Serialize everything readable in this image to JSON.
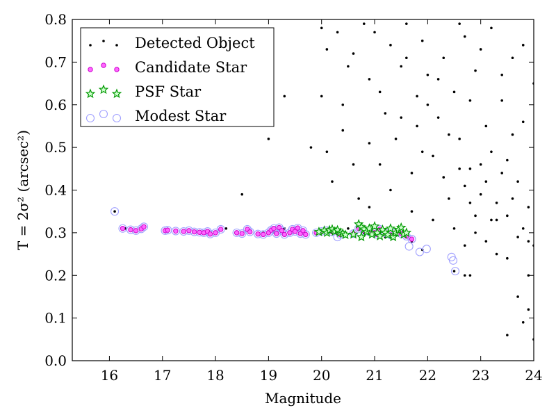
{
  "chart_data": {
    "type": "scatter",
    "xlabel": "Magnitude",
    "ylabel": "T = 2σ² (arcsec²)",
    "xlim": [
      15.3,
      24
    ],
    "ylim": [
      0.0,
      0.8
    ],
    "xticks": [
      16,
      17,
      18,
      19,
      20,
      21,
      22,
      23,
      24
    ],
    "yticks": [
      0.0,
      0.1,
      0.2,
      0.3,
      0.4,
      0.5,
      0.6,
      0.7,
      0.8
    ],
    "xtick_labels": [
      "16",
      "17",
      "18",
      "19",
      "20",
      "21",
      "22",
      "23",
      "24"
    ],
    "ytick_labels": [
      "0.0",
      "0.1",
      "0.2",
      "0.3",
      "0.4",
      "0.5",
      "0.6",
      "0.7",
      "0.8"
    ],
    "grid": false,
    "legend_position": "top-left",
    "legend": [
      {
        "label": "Detected Object",
        "marker": "dot",
        "color": "#000000"
      },
      {
        "label": "Candidate Star",
        "marker": "circle",
        "color": "#ff00ff"
      },
      {
        "label": "PSF Star",
        "marker": "star",
        "color": "#00aa00"
      },
      {
        "label": "Modest Star",
        "marker": "open-circle",
        "color": "#9999ff"
      }
    ],
    "series": [
      {
        "name": "Detected Object",
        "marker": "dot",
        "color": "#000000",
        "points": [
          [
            16.1,
            0.35
          ],
          [
            16.3,
            0.31
          ],
          [
            16.6,
            0.31
          ],
          [
            17.1,
            0.305
          ],
          [
            17.5,
            0.303
          ],
          [
            17.9,
            0.3
          ],
          [
            18.0,
            0.3
          ],
          [
            18.2,
            0.31
          ],
          [
            18.5,
            0.39
          ],
          [
            18.9,
            0.3
          ],
          [
            19.0,
            0.52
          ],
          [
            19.1,
            0.3
          ],
          [
            19.3,
            0.31
          ],
          [
            19.5,
            0.3
          ],
          [
            19.3,
            0.62
          ],
          [
            19.8,
            0.5
          ],
          [
            19.9,
            0.3
          ],
          [
            20.0,
            0.62
          ],
          [
            20.1,
            0.49
          ],
          [
            20.3,
            0.31
          ],
          [
            20.4,
            0.6
          ],
          [
            20.5,
            0.31
          ],
          [
            20.6,
            0.46
          ],
          [
            20.8,
            0.3
          ],
          [
            20.9,
            0.36
          ],
          [
            21.0,
            0.3
          ],
          [
            21.2,
            0.29
          ],
          [
            21.4,
            0.3
          ],
          [
            21.7,
            0.28
          ],
          [
            21.9,
            0.26
          ],
          [
            22.5,
            0.21
          ],
          [
            22.7,
            0.2
          ],
          [
            20.0,
            0.78
          ],
          [
            20.1,
            0.73
          ],
          [
            20.3,
            0.77
          ],
          [
            20.5,
            0.69
          ],
          [
            20.6,
            0.72
          ],
          [
            20.8,
            0.79
          ],
          [
            20.9,
            0.66
          ],
          [
            21.0,
            0.77
          ],
          [
            21.1,
            0.63
          ],
          [
            21.2,
            0.58
          ],
          [
            21.3,
            0.74
          ],
          [
            21.4,
            0.52
          ],
          [
            21.5,
            0.69
          ],
          [
            21.6,
            0.79
          ],
          [
            21.7,
            0.44
          ],
          [
            21.8,
            0.62
          ],
          [
            21.9,
            0.75
          ],
          [
            22.0,
            0.67
          ],
          [
            22.1,
            0.48
          ],
          [
            22.2,
            0.57
          ],
          [
            22.3,
            0.71
          ],
          [
            22.4,
            0.38
          ],
          [
            22.5,
            0.63
          ],
          [
            22.6,
            0.52
          ],
          [
            22.7,
            0.76
          ],
          [
            22.8,
            0.45
          ],
          [
            22.9,
            0.68
          ],
          [
            23.0,
            0.39
          ],
          [
            23.1,
            0.55
          ],
          [
            23.2,
            0.78
          ],
          [
            23.3,
            0.33
          ],
          [
            23.4,
            0.61
          ],
          [
            23.5,
            0.47
          ],
          [
            23.6,
            0.71
          ],
          [
            23.7,
            0.29
          ],
          [
            23.8,
            0.56
          ],
          [
            23.9,
            0.36
          ],
          [
            24.0,
            0.65
          ],
          [
            20.2,
            0.42
          ],
          [
            20.4,
            0.54
          ],
          [
            20.7,
            0.38
          ],
          [
            20.9,
            0.51
          ],
          [
            21.1,
            0.46
          ],
          [
            21.3,
            0.4
          ],
          [
            21.5,
            0.57
          ],
          [
            21.7,
            0.35
          ],
          [
            21.9,
            0.49
          ],
          [
            22.1,
            0.33
          ],
          [
            22.3,
            0.43
          ],
          [
            22.5,
            0.31
          ],
          [
            22.7,
            0.41
          ],
          [
            22.9,
            0.34
          ],
          [
            23.1,
            0.42
          ],
          [
            23.3,
            0.37
          ],
          [
            23.5,
            0.34
          ],
          [
            23.7,
            0.42
          ],
          [
            23.9,
            0.28
          ],
          [
            22.6,
            0.79
          ],
          [
            22.8,
            0.61
          ],
          [
            23.0,
            0.73
          ],
          [
            23.2,
            0.49
          ],
          [
            23.4,
            0.67
          ],
          [
            23.6,
            0.53
          ],
          [
            23.8,
            0.74
          ],
          [
            21.6,
            0.71
          ],
          [
            21.8,
            0.55
          ],
          [
            22.0,
            0.6
          ],
          [
            22.2,
            0.66
          ],
          [
            22.4,
            0.53
          ],
          [
            22.6,
            0.45
          ],
          [
            22.8,
            0.37
          ],
          [
            23.0,
            0.46
          ],
          [
            23.2,
            0.33
          ],
          [
            23.4,
            0.44
          ],
          [
            23.6,
            0.38
          ],
          [
            23.8,
            0.31
          ],
          [
            24.0,
            0.27
          ],
          [
            23.7,
            0.15
          ],
          [
            23.9,
            0.12
          ],
          [
            23.5,
            0.24
          ],
          [
            23.9,
            0.2
          ],
          [
            23.8,
            0.09
          ],
          [
            24.0,
            0.05
          ],
          [
            23.5,
            0.06
          ],
          [
            23.3,
            0.25
          ],
          [
            23.1,
            0.28
          ],
          [
            22.9,
            0.3
          ],
          [
            22.7,
            0.27
          ],
          [
            22.8,
            0.2
          ]
        ]
      },
      {
        "name": "Candidate Star",
        "marker": "circle",
        "color": "#ff00ff",
        "points": [
          [
            16.25,
            0.31
          ],
          [
            16.4,
            0.307
          ],
          [
            16.5,
            0.305
          ],
          [
            16.6,
            0.309
          ],
          [
            16.65,
            0.314
          ],
          [
            17.05,
            0.305
          ],
          [
            17.1,
            0.306
          ],
          [
            17.25,
            0.304
          ],
          [
            17.4,
            0.303
          ],
          [
            17.5,
            0.305
          ],
          [
            17.6,
            0.302
          ],
          [
            17.7,
            0.301
          ],
          [
            17.78,
            0.3
          ],
          [
            17.85,
            0.303
          ],
          [
            17.9,
            0.297
          ],
          [
            18.0,
            0.3
          ],
          [
            18.1,
            0.308
          ],
          [
            18.4,
            0.3
          ],
          [
            18.5,
            0.298
          ],
          [
            18.6,
            0.308
          ],
          [
            18.65,
            0.302
          ],
          [
            18.8,
            0.297
          ],
          [
            18.9,
            0.296
          ],
          [
            19.0,
            0.3
          ],
          [
            19.05,
            0.306
          ],
          [
            19.1,
            0.31
          ],
          [
            19.15,
            0.298
          ],
          [
            19.2,
            0.312
          ],
          [
            19.25,
            0.305
          ],
          [
            19.3,
            0.296
          ],
          [
            19.4,
            0.3
          ],
          [
            19.45,
            0.308
          ],
          [
            19.5,
            0.303
          ],
          [
            19.55,
            0.311
          ],
          [
            19.6,
            0.298
          ],
          [
            19.65,
            0.305
          ],
          [
            19.7,
            0.296
          ],
          [
            19.9,
            0.3
          ],
          [
            20.0,
            0.303
          ],
          [
            20.1,
            0.305
          ],
          [
            20.2,
            0.302
          ],
          [
            20.3,
            0.3
          ],
          [
            20.35,
            0.296
          ],
          [
            20.6,
            0.298
          ],
          [
            20.7,
            0.31
          ],
          [
            20.8,
            0.305
          ],
          [
            20.9,
            0.302
          ],
          [
            21.0,
            0.3
          ],
          [
            21.05,
            0.296
          ],
          [
            21.1,
            0.308
          ],
          [
            21.2,
            0.3
          ],
          [
            21.3,
            0.295
          ],
          [
            21.4,
            0.3
          ],
          [
            21.5,
            0.298
          ],
          [
            21.6,
            0.292
          ],
          [
            21.7,
            0.285
          ]
        ]
      },
      {
        "name": "PSF Star",
        "marker": "star",
        "color": "#00aa00",
        "points": [
          [
            19.95,
            0.302
          ],
          [
            20.05,
            0.305
          ],
          [
            20.1,
            0.3
          ],
          [
            20.15,
            0.306
          ],
          [
            20.2,
            0.308
          ],
          [
            20.25,
            0.303
          ],
          [
            20.3,
            0.306
          ],
          [
            20.35,
            0.3
          ],
          [
            20.4,
            0.298
          ],
          [
            20.45,
            0.295
          ],
          [
            20.6,
            0.296
          ],
          [
            20.7,
            0.32
          ],
          [
            20.75,
            0.313
          ],
          [
            20.8,
            0.308
          ],
          [
            20.85,
            0.302
          ],
          [
            20.9,
            0.31
          ],
          [
            20.95,
            0.296
          ],
          [
            21.0,
            0.315
          ],
          [
            21.05,
            0.3
          ],
          [
            21.1,
            0.292
          ],
          [
            21.15,
            0.307
          ],
          [
            21.2,
            0.3
          ],
          [
            21.25,
            0.295
          ],
          [
            21.3,
            0.31
          ],
          [
            21.35,
            0.29
          ],
          [
            21.4,
            0.3
          ],
          [
            21.45,
            0.307
          ],
          [
            21.5,
            0.312
          ],
          [
            21.55,
            0.296
          ],
          [
            21.6,
            0.3
          ],
          [
            20.75,
            0.29
          ]
        ]
      },
      {
        "name": "Modest Star",
        "marker": "open-circle",
        "color": "#9999ff",
        "points": [
          [
            16.1,
            0.35
          ],
          [
            16.25,
            0.31
          ],
          [
            16.4,
            0.307
          ],
          [
            16.5,
            0.305
          ],
          [
            16.6,
            0.309
          ],
          [
            16.65,
            0.314
          ],
          [
            17.05,
            0.305
          ],
          [
            17.1,
            0.306
          ],
          [
            17.25,
            0.304
          ],
          [
            17.4,
            0.303
          ],
          [
            17.5,
            0.305
          ],
          [
            17.6,
            0.302
          ],
          [
            17.7,
            0.301
          ],
          [
            17.78,
            0.3
          ],
          [
            17.85,
            0.303
          ],
          [
            17.9,
            0.297
          ],
          [
            18.0,
            0.3
          ],
          [
            18.1,
            0.308
          ],
          [
            18.4,
            0.3
          ],
          [
            18.5,
            0.298
          ],
          [
            18.6,
            0.308
          ],
          [
            18.65,
            0.302
          ],
          [
            18.8,
            0.297
          ],
          [
            18.9,
            0.296
          ],
          [
            19.0,
            0.3
          ],
          [
            19.05,
            0.306
          ],
          [
            19.1,
            0.31
          ],
          [
            19.15,
            0.298
          ],
          [
            19.2,
            0.312
          ],
          [
            19.25,
            0.305
          ],
          [
            19.3,
            0.296
          ],
          [
            19.4,
            0.3
          ],
          [
            19.45,
            0.308
          ],
          [
            19.5,
            0.303
          ],
          [
            19.55,
            0.311
          ],
          [
            19.6,
            0.298
          ],
          [
            19.65,
            0.305
          ],
          [
            19.7,
            0.296
          ],
          [
            19.9,
            0.3
          ],
          [
            20.0,
            0.303
          ],
          [
            20.1,
            0.305
          ],
          [
            20.2,
            0.302
          ],
          [
            20.3,
            0.29
          ],
          [
            20.35,
            0.296
          ],
          [
            20.6,
            0.298
          ],
          [
            20.7,
            0.31
          ],
          [
            20.8,
            0.305
          ],
          [
            20.9,
            0.302
          ],
          [
            21.0,
            0.3
          ],
          [
            21.05,
            0.296
          ],
          [
            21.1,
            0.308
          ],
          [
            21.2,
            0.3
          ],
          [
            21.3,
            0.295
          ],
          [
            21.4,
            0.3
          ],
          [
            21.5,
            0.298
          ],
          [
            21.6,
            0.292
          ],
          [
            21.7,
            0.285
          ],
          [
            21.65,
            0.268
          ],
          [
            21.85,
            0.255
          ],
          [
            21.98,
            0.262
          ],
          [
            22.45,
            0.243
          ],
          [
            22.48,
            0.235
          ],
          [
            22.52,
            0.21
          ]
        ]
      }
    ]
  }
}
